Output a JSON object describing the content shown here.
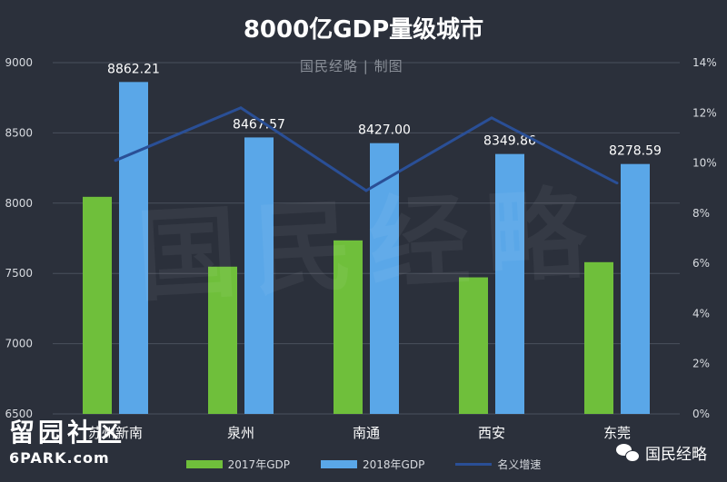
{
  "chart_data": {
    "type": "bar",
    "title": "8000亿GDP量级城市",
    "categories": [
      "苏州新南",
      "泉州",
      "南通",
      "西安",
      "东莞"
    ],
    "series": [
      {
        "name": "2017年GDP",
        "values": [
          8045,
          7548,
          7735,
          7472,
          7580
        ],
        "color": "#6fbf3b",
        "axis": "left"
      },
      {
        "name": "2018年GDP",
        "values": [
          8862.21,
          8467.57,
          8427.0,
          8349.86,
          8278.59
        ],
        "color": "#5aa7e8",
        "axis": "left",
        "labels": [
          "8862.21",
          "8467.57",
          "8427.00",
          "8349.86",
          "8278.59"
        ]
      },
      {
        "name": "名义增速",
        "type": "line",
        "values": [
          10.1,
          12.2,
          8.9,
          11.8,
          9.2
        ],
        "color": "#2a4f96",
        "axis": "right"
      }
    ],
    "ylim": [
      6500,
      9000
    ],
    "yticks": [
      "9000",
      "8500",
      "8000",
      "7500",
      "7000",
      "6500"
    ],
    "y2lim": [
      0,
      14
    ],
    "y2ticks": [
      "14%",
      "12%",
      "10%",
      "8%",
      "6%",
      "4%",
      "2%",
      "0%"
    ],
    "legend_position": "bottom",
    "grid": true
  },
  "credit": "国民经略 | 制图",
  "watermark_text": "国民经略",
  "watermark_forum": {
    "line1": "留园社区",
    "line2": "6PARK.com"
  },
  "watermark_account": "国民经略"
}
